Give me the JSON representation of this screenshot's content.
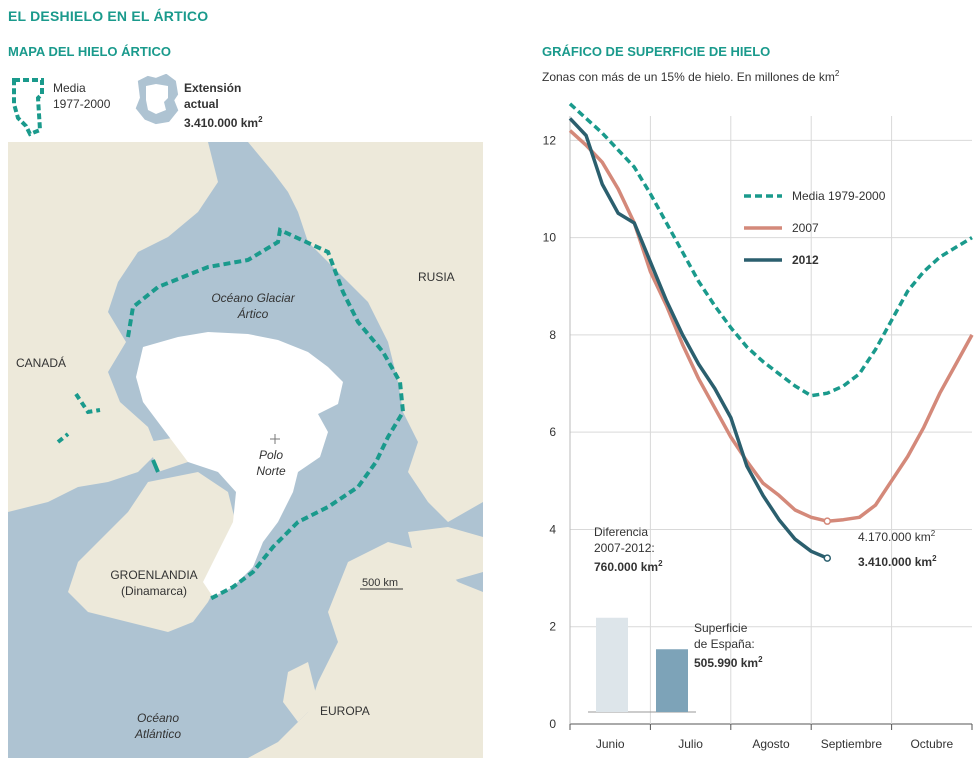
{
  "title": "EL DESHIELO EN EL ÁRTICO",
  "map": {
    "title": "MAPA DEL HIELO ÁRTICO",
    "legend_media_1": "Media",
    "legend_media_2": "1977-2000",
    "legend_ext_1": "Extensión",
    "legend_ext_2": "actual",
    "legend_ext_3": "3.410.000 km",
    "labels": {
      "canada": "CANADÁ",
      "rusia": "RUSIA",
      "oceano_glaciar_1": "Océano Glaciar",
      "oceano_glaciar_2": "Ártico",
      "polo_1": "Polo",
      "polo_2": "Norte",
      "groenlandia_1": "GROENLANDIA",
      "groenlandia_2": "(Dinamarca)",
      "scale": "500 km",
      "europa": "EUROPA",
      "atlantico_1": "Océano",
      "atlantico_2": "Atlántico"
    },
    "colors": {
      "water": "#aec3d2",
      "land": "#ede9da",
      "ice": "#ffffff",
      "dashed": "#1a9a8c"
    }
  },
  "chart": {
    "title": "GRÁFICO DE SUPERFICIE DE HIELO",
    "subtitle": "Zonas con más de un 15% de hielo. En millones de km",
    "annotations": {
      "val_2007": "4.170.000 km",
      "val_2012": "3.410.000 km",
      "diff_1": "Diferencia",
      "diff_2": "2007-2012:",
      "diff_3": "760.000 km",
      "spain_1": "Superficie",
      "spain_2": "de España:",
      "spain_3": "505.990 km"
    }
  },
  "chart_data": {
    "type": "line",
    "subtitle": "Zonas con más de un 15% de hielo. En millones de km²",
    "x_tick_labels": [
      "Junio",
      "Julio",
      "Agosto",
      "Septiembre",
      "Octubre"
    ],
    "x_range_days": [
      0,
      150
    ],
    "ylim": [
      0,
      12.5
    ],
    "y_ticks": [
      0,
      2,
      4,
      6,
      8,
      10,
      12
    ],
    "grid": true,
    "legend_position": "top-right",
    "series": [
      {
        "name": "Media 1979-2000",
        "style": "dashed",
        "color": "#1a9a8c",
        "x": [
          0,
          6,
          12,
          18,
          24,
          30,
          36,
          42,
          48,
          54,
          60,
          66,
          72,
          78,
          84,
          90,
          96,
          102,
          108,
          114,
          120,
          126,
          132,
          138,
          144,
          150
        ],
        "y": [
          12.75,
          12.45,
          12.15,
          11.8,
          11.45,
          10.9,
          10.3,
          9.7,
          9.1,
          8.6,
          8.15,
          7.75,
          7.45,
          7.2,
          6.95,
          6.75,
          6.8,
          6.95,
          7.2,
          7.7,
          8.3,
          8.9,
          9.3,
          9.6,
          9.8,
          10.0
        ]
      },
      {
        "name": "2007",
        "style": "solid",
        "color": "#d4897a",
        "x": [
          0,
          6,
          12,
          18,
          24,
          30,
          36,
          42,
          48,
          54,
          60,
          66,
          72,
          78,
          84,
          90,
          96,
          102,
          108,
          114,
          120,
          126,
          132,
          138,
          144,
          150
        ],
        "y": [
          12.2,
          11.9,
          11.55,
          11.0,
          10.3,
          9.3,
          8.6,
          7.8,
          7.1,
          6.5,
          5.9,
          5.4,
          4.95,
          4.7,
          4.4,
          4.25,
          4.17,
          4.2,
          4.25,
          4.5,
          5.0,
          5.5,
          6.1,
          6.8,
          7.4,
          8.0
        ]
      },
      {
        "name": "2012",
        "style": "solid",
        "color": "#2b5f6e",
        "x": [
          0,
          6,
          12,
          18,
          24,
          30,
          36,
          42,
          48,
          54,
          60,
          66,
          72,
          78,
          84,
          90,
          96
        ],
        "y": [
          12.45,
          12.1,
          11.1,
          10.5,
          10.3,
          9.5,
          8.7,
          8.0,
          7.4,
          6.9,
          6.3,
          5.3,
          4.7,
          4.2,
          3.8,
          3.55,
          3.41
        ]
      }
    ],
    "bars": [
      {
        "label": "Diferencia 2007-2012",
        "value": 0.76,
        "unit": "millones km²",
        "color": "#dde5ea"
      },
      {
        "label": "Superficie de España",
        "value": 0.50599,
        "unit": "millones km²",
        "color": "#7da3b8"
      }
    ]
  }
}
